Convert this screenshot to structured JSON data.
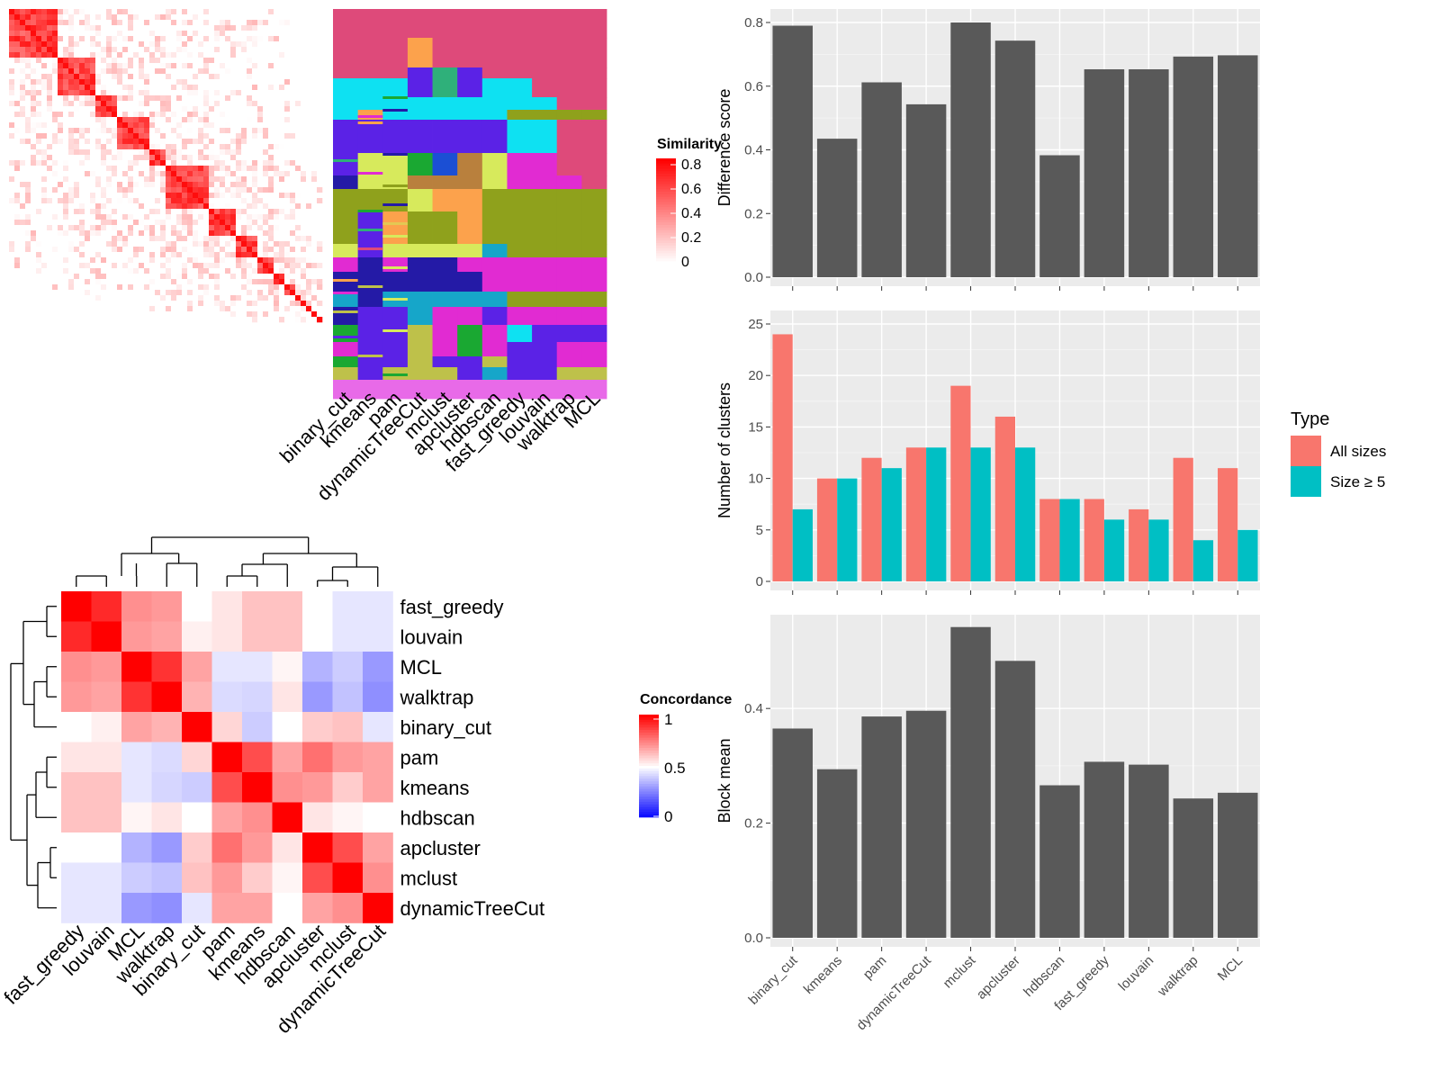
{
  "chart_data": [
    {
      "type": "heatmap",
      "legend_title": "Similarity",
      "legend_ticks": [
        "0.8",
        "0.6",
        "0.4",
        "0.2",
        "0"
      ],
      "note": "cell-by-cell similarity matrix",
      "colors": {
        "low": "#ffffff",
        "high": "#ff0000"
      }
    },
    {
      "type": "heatmap",
      "note": "cluster label per cell for each method",
      "columns": [
        "binary_cut",
        "kmeans",
        "pam",
        "dynamicTreeCut",
        "mclust",
        "apcluster",
        "hdbscan",
        "fast_greedy",
        "louvain",
        "walktrap",
        "MCL"
      ]
    },
    {
      "type": "bar",
      "ylabel": "Difference score",
      "categories": [
        "binary_cut",
        "kmeans",
        "pam",
        "dynamicTreeCut",
        "mclust",
        "apcluster",
        "hdbscan",
        "fast_greedy",
        "louvain",
        "walktrap",
        "MCL"
      ],
      "values": [
        0.79,
        0.435,
        0.612,
        0.543,
        0.8,
        0.743,
        0.383,
        0.653,
        0.653,
        0.693,
        0.697
      ],
      "ylim": [
        0,
        0.8
      ],
      "yticks": [
        "0.0",
        "0.2",
        "0.4",
        "0.6",
        "0.8"
      ],
      "colors": {
        "bar": "#595959",
        "panel": "#ebebeb",
        "grid": "#ffffff"
      }
    },
    {
      "type": "bar",
      "ylabel": "Number of clusters",
      "categories": [
        "binary_cut",
        "kmeans",
        "pam",
        "dynamicTreeCut",
        "mclust",
        "apcluster",
        "hdbscan",
        "fast_greedy",
        "louvain",
        "walktrap",
        "MCL"
      ],
      "series": [
        {
          "name": "All sizes",
          "values": [
            24,
            10,
            12,
            13,
            19,
            16,
            8,
            8,
            7,
            12,
            11
          ],
          "color": "#f8766d"
        },
        {
          "name": "Size ≥ 5",
          "values": [
            7,
            10,
            11,
            13,
            13,
            13,
            8,
            6,
            6,
            4,
            5
          ],
          "color": "#00bfc4"
        }
      ],
      "legend_title": "Type",
      "ylim": [
        0,
        25
      ],
      "yticks": [
        "0",
        "5",
        "10",
        "15",
        "20",
        "25"
      ]
    },
    {
      "type": "bar",
      "ylabel": "Block mean",
      "categories": [
        "binary_cut",
        "kmeans",
        "pam",
        "dynamicTreeCut",
        "mclust",
        "apcluster",
        "hdbscan",
        "fast_greedy",
        "louvain",
        "walktrap",
        "MCL"
      ],
      "values": [
        0.365,
        0.294,
        0.386,
        0.396,
        0.542,
        0.483,
        0.266,
        0.307,
        0.302,
        0.243,
        0.253
      ],
      "ylim": [
        0,
        0.54
      ],
      "yticks": [
        "0.0",
        "0.2",
        "0.4"
      ]
    },
    {
      "type": "heatmap",
      "legend_title": "Concordance",
      "legend_ticks": [
        "1",
        "0.5",
        "0"
      ],
      "labels": [
        "fast_greedy",
        "louvain",
        "MCL",
        "walktrap",
        "binary_cut",
        "pam",
        "kmeans",
        "hdbscan",
        "apcluster",
        "mclust",
        "dynamicTreeCut"
      ],
      "matrix": [
        [
          1.0,
          0.92,
          0.72,
          0.7,
          0.5,
          0.55,
          0.62,
          0.62,
          0.5,
          0.45,
          0.45
        ],
        [
          0.92,
          1.0,
          0.7,
          0.68,
          0.53,
          0.55,
          0.62,
          0.62,
          0.5,
          0.45,
          0.45
        ],
        [
          0.72,
          0.7,
          1.0,
          0.9,
          0.68,
          0.45,
          0.45,
          0.52,
          0.35,
          0.4,
          0.3
        ],
        [
          0.7,
          0.68,
          0.9,
          1.0,
          0.65,
          0.43,
          0.42,
          0.55,
          0.3,
          0.38,
          0.28
        ],
        [
          0.5,
          0.53,
          0.68,
          0.65,
          1.0,
          0.58,
          0.4,
          0.5,
          0.6,
          0.62,
          0.45
        ],
        [
          0.55,
          0.55,
          0.45,
          0.43,
          0.58,
          1.0,
          0.85,
          0.68,
          0.78,
          0.7,
          0.68
        ],
        [
          0.62,
          0.62,
          0.45,
          0.42,
          0.4,
          0.85,
          1.0,
          0.72,
          0.7,
          0.6,
          0.68
        ],
        [
          0.62,
          0.62,
          0.52,
          0.55,
          0.5,
          0.68,
          0.72,
          1.0,
          0.55,
          0.52,
          0.5
        ],
        [
          0.5,
          0.5,
          0.35,
          0.3,
          0.6,
          0.78,
          0.7,
          0.55,
          1.0,
          0.85,
          0.68
        ],
        [
          0.45,
          0.45,
          0.4,
          0.38,
          0.62,
          0.7,
          0.6,
          0.52,
          0.85,
          1.0,
          0.72
        ],
        [
          0.45,
          0.45,
          0.3,
          0.28,
          0.45,
          0.68,
          0.68,
          0.5,
          0.68,
          0.72,
          1.0
        ]
      ]
    }
  ]
}
